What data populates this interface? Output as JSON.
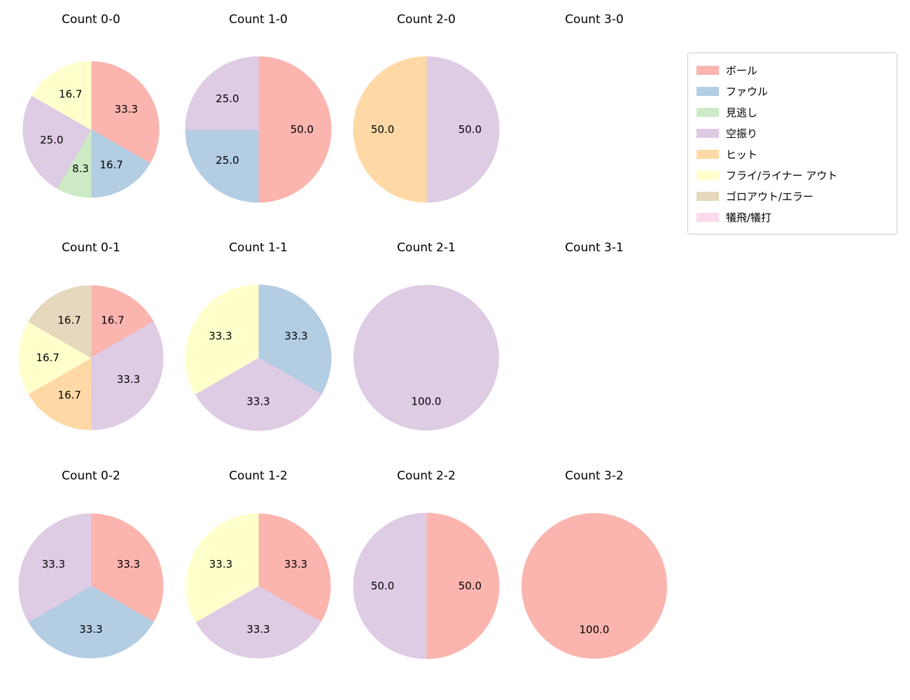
{
  "legend": {
    "items": [
      {
        "label": "ボール",
        "color": "#fbb4ae"
      },
      {
        "label": "ファウル",
        "color": "#b3cde3"
      },
      {
        "label": "見逃し",
        "color": "#ccebc5"
      },
      {
        "label": "空振り",
        "color": "#decbe4"
      },
      {
        "label": "ヒット",
        "color": "#fed9a6"
      },
      {
        "label": "フライ/ライナー アウト",
        "color": "#ffffcc"
      },
      {
        "label": "ゴロアウト/エラー",
        "color": "#e5d8bd"
      },
      {
        "label": "犠飛/犠打",
        "color": "#fddaec"
      }
    ]
  },
  "chart_data": [
    {
      "type": "pie",
      "title": "Count 0-0",
      "radius": 97,
      "start_angle": "top",
      "direction": "clockwise",
      "pct_distance": 0.6,
      "slices": [
        {
          "label": "ボール",
          "value": 33.3,
          "color": "#fbb4ae"
        },
        {
          "label": "ファウル",
          "value": 16.7,
          "color": "#b3cde3"
        },
        {
          "label": "見逃し",
          "value": 8.3,
          "color": "#ccebc5"
        },
        {
          "label": "空振り",
          "value": 25.0,
          "color": "#decbe4"
        },
        {
          "label": "フライ/ライナー アウト",
          "value": 16.7,
          "color": "#ffffcc"
        }
      ]
    },
    {
      "type": "pie",
      "title": "Count 1-0",
      "radius": 104,
      "start_angle": "top",
      "direction": "clockwise",
      "pct_distance": 0.6,
      "slices": [
        {
          "label": "ボール",
          "value": 50.0,
          "color": "#fbb4ae"
        },
        {
          "label": "ファウル",
          "value": 25.0,
          "color": "#b3cde3"
        },
        {
          "label": "空振り",
          "value": 25.0,
          "color": "#decbe4"
        }
      ]
    },
    {
      "type": "pie",
      "title": "Count 2-0",
      "radius": 104,
      "start_angle": "top",
      "direction": "clockwise",
      "pct_distance": 0.6,
      "slices": [
        {
          "label": "空振り",
          "value": 50.0,
          "color": "#decbe4"
        },
        {
          "label": "ヒット",
          "value": 50.0,
          "color": "#fed9a6"
        }
      ]
    },
    {
      "type": "pie",
      "title": "Count 3-0",
      "radius": 104,
      "start_angle": "top",
      "direction": "clockwise",
      "pct_distance": 0.6,
      "slices": []
    },
    {
      "type": "pie",
      "title": "Count 0-1",
      "radius": 103,
      "start_angle": "top",
      "direction": "clockwise",
      "pct_distance": 0.6,
      "slices": [
        {
          "label": "ボール",
          "value": 16.7,
          "color": "#fbb4ae"
        },
        {
          "label": "空振り",
          "value": 33.3,
          "color": "#decbe4"
        },
        {
          "label": "ヒット",
          "value": 16.7,
          "color": "#fed9a6"
        },
        {
          "label": "フライ/ライナー アウト",
          "value": 16.7,
          "color": "#ffffcc"
        },
        {
          "label": "ゴロアウト/エラー",
          "value": 16.7,
          "color": "#e5d8bd"
        }
      ]
    },
    {
      "type": "pie",
      "title": "Count 1-1",
      "radius": 104,
      "start_angle": "top",
      "direction": "clockwise",
      "pct_distance": 0.6,
      "slices": [
        {
          "label": "ファウル",
          "value": 33.3,
          "color": "#b3cde3"
        },
        {
          "label": "空振り",
          "value": 33.3,
          "color": "#decbe4"
        },
        {
          "label": "フライ/ライナー アウト",
          "value": 33.3,
          "color": "#ffffcc"
        }
      ]
    },
    {
      "type": "pie",
      "title": "Count 2-1",
      "radius": 104,
      "start_angle": "top",
      "direction": "clockwise",
      "pct_distance": 0.6,
      "slices": [
        {
          "label": "空振り",
          "value": 100.0,
          "color": "#decbe4"
        }
      ]
    },
    {
      "type": "pie",
      "title": "Count 3-1",
      "radius": 104,
      "start_angle": "top",
      "direction": "clockwise",
      "pct_distance": 0.6,
      "slices": []
    },
    {
      "type": "pie",
      "title": "Count 0-2",
      "radius": 103,
      "start_angle": "top",
      "direction": "clockwise",
      "pct_distance": 0.6,
      "slices": [
        {
          "label": "ボール",
          "value": 33.3,
          "color": "#fbb4ae"
        },
        {
          "label": "ファウル",
          "value": 33.3,
          "color": "#b3cde3"
        },
        {
          "label": "空振り",
          "value": 33.3,
          "color": "#decbe4"
        }
      ]
    },
    {
      "type": "pie",
      "title": "Count 1-2",
      "radius": 103,
      "start_angle": "top",
      "direction": "clockwise",
      "pct_distance": 0.6,
      "slices": [
        {
          "label": "ボール",
          "value": 33.3,
          "color": "#fbb4ae"
        },
        {
          "label": "空振り",
          "value": 33.3,
          "color": "#decbe4"
        },
        {
          "label": "フライ/ライナー アウト",
          "value": 33.3,
          "color": "#ffffcc"
        }
      ]
    },
    {
      "type": "pie",
      "title": "Count 2-2",
      "radius": 104,
      "start_angle": "top",
      "direction": "clockwise",
      "pct_distance": 0.6,
      "slices": [
        {
          "label": "ボール",
          "value": 50.0,
          "color": "#fbb4ae"
        },
        {
          "label": "空振り",
          "value": 50.0,
          "color": "#decbe4"
        }
      ]
    },
    {
      "type": "pie",
      "title": "Count 3-2",
      "radius": 104,
      "start_angle": "top",
      "direction": "clockwise",
      "pct_distance": 0.6,
      "slices": [
        {
          "label": "ボール",
          "value": 100.0,
          "color": "#fbb4ae"
        }
      ]
    }
  ]
}
